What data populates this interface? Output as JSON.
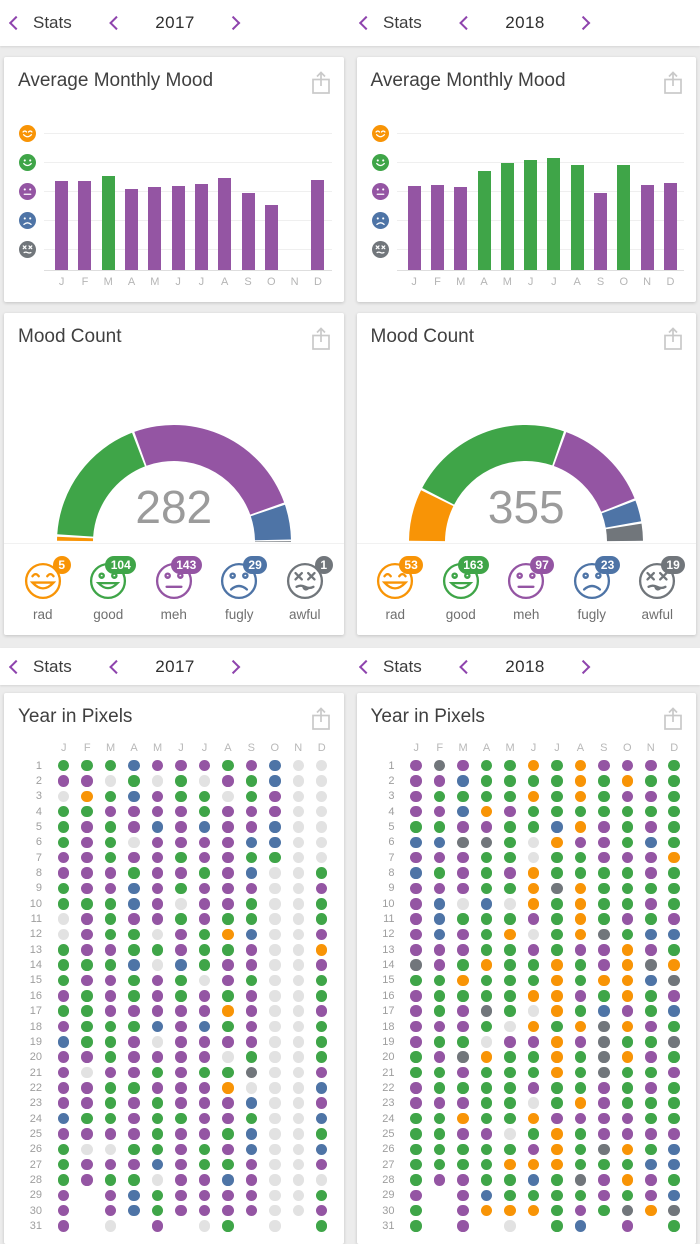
{
  "accent": "#8E44AD",
  "mood_colors": {
    "rad": "#F89406",
    "good": "#3FA548",
    "meh": "#9455A3",
    "fugly": "#4E74A6",
    "awful": "#71767B",
    "empty": "#E2E2E2"
  },
  "headers": [
    {
      "stats": "Stats",
      "year": "2017"
    },
    {
      "stats": "Stats",
      "year": "2018"
    }
  ],
  "monthly_mood": {
    "title": "Average Monthly Mood",
    "months": [
      "J",
      "F",
      "M",
      "A",
      "M",
      "J",
      "J",
      "A",
      "S",
      "O",
      "N",
      "D"
    ],
    "axis_moods": [
      "rad",
      "good",
      "meh",
      "fugly",
      "awful"
    ],
    "chart_data": [
      {
        "type": "bar",
        "year": "2017",
        "categories": [
          "J",
          "F",
          "M",
          "A",
          "M",
          "J",
          "J",
          "A",
          "S",
          "O",
          "N",
          "D"
        ],
        "values": [
          3.3,
          3.3,
          3.5,
          3.05,
          3.1,
          3.15,
          3.2,
          3.4,
          2.9,
          2.5,
          null,
          3.35
        ],
        "bar_colors": [
          "meh",
          "meh",
          "good",
          "meh",
          "meh",
          "meh",
          "meh",
          "meh",
          "meh",
          "meh",
          null,
          "meh"
        ],
        "ylim": [
          1,
          5
        ],
        "y_ticks": [
          "awful",
          "fugly",
          "meh",
          "good",
          "rad"
        ]
      },
      {
        "type": "bar",
        "year": "2018",
        "categories": [
          "J",
          "F",
          "M",
          "A",
          "M",
          "J",
          "J",
          "A",
          "S",
          "O",
          "N",
          "D"
        ],
        "values": [
          3.15,
          3.18,
          3.12,
          3.65,
          3.92,
          4.05,
          4.1,
          3.88,
          2.9,
          3.85,
          3.18,
          3.25
        ],
        "bar_colors": [
          "meh",
          "meh",
          "meh",
          "good",
          "good",
          "good",
          "good",
          "good",
          "meh",
          "good",
          "meh",
          "meh"
        ],
        "ylim": [
          1,
          5
        ],
        "y_ticks": [
          "awful",
          "fugly",
          "meh",
          "good",
          "rad"
        ]
      }
    ]
  },
  "mood_count": {
    "title": "Mood Count",
    "cards": [
      {
        "year": "2017",
        "total": "282",
        "moods": [
          {
            "key": "rad",
            "label": "rad",
            "count": "5"
          },
          {
            "key": "good",
            "label": "good",
            "count": "104"
          },
          {
            "key": "meh",
            "label": "meh",
            "count": "143"
          },
          {
            "key": "fugly",
            "label": "fugly",
            "count": "29"
          },
          {
            "key": "awful",
            "label": "awful",
            "count": "1"
          }
        ]
      },
      {
        "year": "2018",
        "total": "355",
        "moods": [
          {
            "key": "rad",
            "label": "rad",
            "count": "53"
          },
          {
            "key": "good",
            "label": "good",
            "count": "163"
          },
          {
            "key": "meh",
            "label": "meh",
            "count": "97"
          },
          {
            "key": "fugly",
            "label": "fugly",
            "count": "23"
          },
          {
            "key": "awful",
            "label": "awful",
            "count": "19"
          }
        ]
      }
    ]
  },
  "year_in_pixels": {
    "title": "Year in Pixels",
    "months": [
      "J",
      "F",
      "M",
      "A",
      "M",
      "J",
      "J",
      "A",
      "S",
      "O",
      "N",
      "D"
    ],
    "days": [
      "1",
      "2",
      "3",
      "4",
      "5",
      "6",
      "7",
      "8",
      "9",
      "10",
      "11",
      "12",
      "13",
      "14",
      "15",
      "16",
      "17",
      "18",
      "19",
      "20",
      "21",
      "22",
      "23",
      "24",
      "25",
      "26",
      "27",
      "28",
      "29",
      "30",
      "31"
    ],
    "legend": {
      "r": "rad",
      "g": "good",
      "m": "meh",
      "f": "fugly",
      "a": "awful",
      "e": "no-entry",
      "n": "no-day"
    },
    "grids": [
      {
        "year": "2017",
        "rows": [
          [
            "g",
            "g",
            "g",
            "f",
            "m",
            "m",
            "m",
            "g",
            "m",
            "f",
            "e",
            "e"
          ],
          [
            "m",
            "m",
            "e",
            "g",
            "e",
            "g",
            "e",
            "m",
            "g",
            "f",
            "e",
            "e"
          ],
          [
            "e",
            "r",
            "g",
            "f",
            "m",
            "g",
            "g",
            "e",
            "g",
            "m",
            "e",
            "e"
          ],
          [
            "g",
            "g",
            "m",
            "m",
            "m",
            "m",
            "g",
            "m",
            "m",
            "m",
            "e",
            "e"
          ],
          [
            "g",
            "m",
            "g",
            "m",
            "f",
            "m",
            "f",
            "m",
            "m",
            "f",
            "e",
            "e"
          ],
          [
            "g",
            "m",
            "g",
            "e",
            "m",
            "m",
            "m",
            "m",
            "f",
            "f",
            "e",
            "e"
          ],
          [
            "m",
            "m",
            "g",
            "m",
            "m",
            "g",
            "m",
            "m",
            "g",
            "g",
            "e",
            "e"
          ],
          [
            "m",
            "m",
            "m",
            "g",
            "m",
            "m",
            "g",
            "m",
            "f",
            "e",
            "e",
            "g"
          ],
          [
            "g",
            "m",
            "m",
            "f",
            "m",
            "g",
            "m",
            "m",
            "m",
            "e",
            "e",
            "m"
          ],
          [
            "g",
            "g",
            "g",
            "f",
            "m",
            "e",
            "m",
            "m",
            "g",
            "e",
            "e",
            "g"
          ],
          [
            "e",
            "m",
            "g",
            "m",
            "m",
            "g",
            "m",
            "g",
            "g",
            "e",
            "e",
            "g"
          ],
          [
            "e",
            "m",
            "g",
            "g",
            "e",
            "m",
            "g",
            "r",
            "f",
            "e",
            "e",
            "m"
          ],
          [
            "g",
            "m",
            "m",
            "g",
            "g",
            "m",
            "g",
            "g",
            "m",
            "e",
            "e",
            "r"
          ],
          [
            "g",
            "g",
            "g",
            "f",
            "e",
            "f",
            "g",
            "m",
            "m",
            "e",
            "e",
            "m"
          ],
          [
            "g",
            "m",
            "m",
            "g",
            "m",
            "g",
            "e",
            "m",
            "g",
            "e",
            "e",
            "g"
          ],
          [
            "m",
            "g",
            "m",
            "g",
            "m",
            "g",
            "m",
            "g",
            "m",
            "e",
            "e",
            "g"
          ],
          [
            "g",
            "g",
            "m",
            "m",
            "m",
            "m",
            "m",
            "r",
            "m",
            "e",
            "e",
            "m"
          ],
          [
            "m",
            "g",
            "g",
            "g",
            "f",
            "m",
            "f",
            "g",
            "m",
            "e",
            "e",
            "g"
          ],
          [
            "f",
            "g",
            "g",
            "m",
            "e",
            "m",
            "m",
            "m",
            "m",
            "e",
            "e",
            "g"
          ],
          [
            "m",
            "m",
            "g",
            "m",
            "m",
            "m",
            "m",
            "e",
            "g",
            "e",
            "e",
            "g"
          ],
          [
            "m",
            "e",
            "m",
            "m",
            "g",
            "m",
            "g",
            "g",
            "a",
            "e",
            "e",
            "m"
          ],
          [
            "m",
            "m",
            "g",
            "g",
            "m",
            "m",
            "m",
            "r",
            "e",
            "e",
            "e",
            "f"
          ],
          [
            "m",
            "m",
            "g",
            "m",
            "g",
            "m",
            "m",
            "m",
            "f",
            "e",
            "e",
            "m"
          ],
          [
            "f",
            "g",
            "g",
            "m",
            "g",
            "g",
            "m",
            "m",
            "g",
            "e",
            "e",
            "f"
          ],
          [
            "m",
            "m",
            "m",
            "m",
            "g",
            "m",
            "m",
            "g",
            "f",
            "e",
            "e",
            "g"
          ],
          [
            "g",
            "e",
            "e",
            "g",
            "g",
            "m",
            "g",
            "m",
            "f",
            "e",
            "e",
            "f"
          ],
          [
            "g",
            "m",
            "m",
            "m",
            "f",
            "m",
            "g",
            "g",
            "m",
            "e",
            "e",
            "m"
          ],
          [
            "g",
            "m",
            "g",
            "g",
            "e",
            "m",
            "m",
            "f",
            "m",
            "e",
            "e",
            "e"
          ],
          [
            "m",
            "n",
            "m",
            "f",
            "g",
            "m",
            "m",
            "m",
            "m",
            "e",
            "e",
            "g"
          ],
          [
            "m",
            "n",
            "m",
            "f",
            "g",
            "m",
            "m",
            "m",
            "m",
            "e",
            "e",
            "m"
          ],
          [
            "m",
            "n",
            "e",
            "n",
            "m",
            "n",
            "e",
            "g",
            "n",
            "e",
            "n",
            "g"
          ]
        ]
      },
      {
        "year": "2018",
        "rows": [
          [
            "m",
            "a",
            "m",
            "g",
            "g",
            "r",
            "g",
            "r",
            "m",
            "m",
            "m",
            "g"
          ],
          [
            "m",
            "m",
            "f",
            "g",
            "g",
            "g",
            "g",
            "r",
            "g",
            "r",
            "g",
            "g"
          ],
          [
            "m",
            "g",
            "g",
            "g",
            "g",
            "r",
            "g",
            "r",
            "g",
            "m",
            "m",
            "g"
          ],
          [
            "m",
            "m",
            "f",
            "r",
            "m",
            "g",
            "g",
            "g",
            "g",
            "g",
            "g",
            "g"
          ],
          [
            "g",
            "g",
            "m",
            "m",
            "g",
            "g",
            "f",
            "r",
            "m",
            "g",
            "m",
            "g"
          ],
          [
            "f",
            "f",
            "a",
            "a",
            "g",
            "e",
            "r",
            "m",
            "m",
            "g",
            "f",
            "g"
          ],
          [
            "m",
            "m",
            "m",
            "g",
            "g",
            "e",
            "g",
            "g",
            "m",
            "m",
            "m",
            "r"
          ],
          [
            "f",
            "g",
            "m",
            "g",
            "m",
            "r",
            "g",
            "g",
            "g",
            "g",
            "m",
            "g"
          ],
          [
            "m",
            "m",
            "m",
            "g",
            "g",
            "r",
            "a",
            "r",
            "g",
            "g",
            "g",
            "g"
          ],
          [
            "m",
            "f",
            "e",
            "f",
            "e",
            "r",
            "g",
            "r",
            "g",
            "g",
            "m",
            "g"
          ],
          [
            "m",
            "f",
            "g",
            "g",
            "g",
            "m",
            "g",
            "r",
            "g",
            "m",
            "g",
            "m"
          ],
          [
            "m",
            "f",
            "m",
            "g",
            "r",
            "e",
            "g",
            "r",
            "a",
            "g",
            "f",
            "f"
          ],
          [
            "m",
            "m",
            "m",
            "g",
            "g",
            "m",
            "g",
            "m",
            "m",
            "r",
            "m",
            "g"
          ],
          [
            "a",
            "m",
            "g",
            "r",
            "g",
            "g",
            "r",
            "g",
            "m",
            "r",
            "a",
            "r"
          ],
          [
            "g",
            "g",
            "r",
            "g",
            "g",
            "g",
            "r",
            "g",
            "r",
            "r",
            "f",
            "a"
          ],
          [
            "m",
            "g",
            "g",
            "g",
            "g",
            "r",
            "r",
            "m",
            "g",
            "r",
            "g",
            "m"
          ],
          [
            "m",
            "g",
            "m",
            "a",
            "g",
            "e",
            "r",
            "g",
            "f",
            "m",
            "g",
            "f"
          ],
          [
            "m",
            "m",
            "m",
            "g",
            "e",
            "r",
            "g",
            "r",
            "a",
            "r",
            "m",
            "g"
          ],
          [
            "m",
            "g",
            "g",
            "e",
            "m",
            "m",
            "r",
            "m",
            "a",
            "g",
            "g",
            "a"
          ],
          [
            "g",
            "m",
            "a",
            "r",
            "g",
            "g",
            "r",
            "g",
            "a",
            "r",
            "m",
            "g"
          ],
          [
            "g",
            "g",
            "m",
            "g",
            "g",
            "g",
            "r",
            "g",
            "a",
            "g",
            "g",
            "m"
          ],
          [
            "m",
            "g",
            "g",
            "g",
            "g",
            "m",
            "g",
            "g",
            "m",
            "g",
            "m",
            "g"
          ],
          [
            "m",
            "m",
            "m",
            "g",
            "g",
            "e",
            "g",
            "r",
            "m",
            "g",
            "g",
            "g"
          ],
          [
            "g",
            "g",
            "r",
            "g",
            "g",
            "r",
            "m",
            "m",
            "m",
            "m",
            "g",
            "g"
          ],
          [
            "g",
            "g",
            "m",
            "m",
            "e",
            "g",
            "r",
            "g",
            "m",
            "m",
            "m",
            "m"
          ],
          [
            "g",
            "g",
            "g",
            "g",
            "g",
            "m",
            "r",
            "g",
            "a",
            "r",
            "g",
            "f"
          ],
          [
            "g",
            "g",
            "g",
            "g",
            "r",
            "r",
            "r",
            "g",
            "g",
            "g",
            "f",
            "f"
          ],
          [
            "g",
            "m",
            "m",
            "g",
            "g",
            "f",
            "g",
            "a",
            "m",
            "r",
            "m",
            "g"
          ],
          [
            "m",
            "n",
            "m",
            "f",
            "g",
            "g",
            "g",
            "g",
            "m",
            "g",
            "m",
            "f"
          ],
          [
            "g",
            "n",
            "m",
            "r",
            "r",
            "r",
            "g",
            "m",
            "g",
            "a",
            "r",
            "a"
          ],
          [
            "g",
            "n",
            "m",
            "n",
            "e",
            "n",
            "g",
            "f",
            "n",
            "m",
            "n",
            "g"
          ]
        ]
      }
    ]
  }
}
